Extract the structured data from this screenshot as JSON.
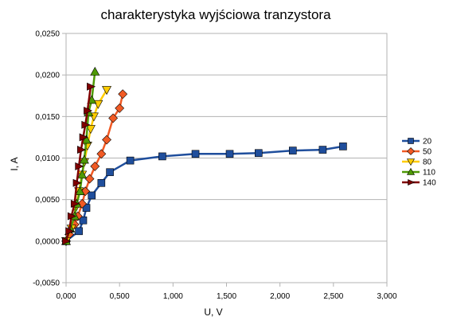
{
  "chart_data": {
    "type": "scatter",
    "title": "charakterystyka wyjściowa tranzystora",
    "xlabel": "U, V",
    "ylabel": "I, A",
    "xlim": [
      0,
      3
    ],
    "ylim": [
      -0.005,
      0.025
    ],
    "x_ticks": [
      "0,000",
      "0,500",
      "1,000",
      "1,500",
      "2,000",
      "2,500",
      "3,000"
    ],
    "y_ticks": [
      "-0,0050",
      "0,0000",
      "0,0050",
      "0,0100",
      "0,0150",
      "0,0200",
      "0,0250"
    ],
    "grid": "horizontal",
    "legend_position": "right",
    "series": [
      {
        "name": "20",
        "color": "#1f4e9c",
        "marker": "square",
        "x": [
          0.0,
          0.12,
          0.16,
          0.19,
          0.24,
          0.33,
          0.41,
          0.6,
          0.9,
          1.21,
          1.53,
          1.8,
          2.12,
          2.4,
          2.59
        ],
        "y": [
          0.0,
          0.0012,
          0.0025,
          0.004,
          0.0055,
          0.007,
          0.0083,
          0.0097,
          0.0102,
          0.0105,
          0.0105,
          0.0106,
          0.0109,
          0.011,
          0.0114
        ]
      },
      {
        "name": "50",
        "color": "#f15a24",
        "marker": "diamond",
        "x": [
          0.0,
          0.03,
          0.08,
          0.11,
          0.15,
          0.18,
          0.22,
          0.27,
          0.33,
          0.38,
          0.44,
          0.5,
          0.53
        ],
        "y": [
          0.0,
          0.0008,
          0.002,
          0.003,
          0.0045,
          0.006,
          0.0075,
          0.009,
          0.0105,
          0.0122,
          0.0148,
          0.016,
          0.0177
        ]
      },
      {
        "name": "80",
        "color": "#ffcc00",
        "marker": "triangle-down",
        "x": [
          0.0,
          0.05,
          0.09,
          0.12,
          0.15,
          0.17,
          0.2,
          0.23,
          0.26,
          0.3,
          0.38
        ],
        "y": [
          0.0,
          0.0015,
          0.004,
          0.006,
          0.008,
          0.0095,
          0.0115,
          0.0135,
          0.015,
          0.0165,
          0.0182
        ]
      },
      {
        "name": "110",
        "color": "#4e9a06",
        "marker": "triangle-up",
        "x": [
          0.0,
          0.04,
          0.08,
          0.1,
          0.13,
          0.15,
          0.17,
          0.19,
          0.21,
          0.24,
          0.27
        ],
        "y": [
          0.0,
          0.0015,
          0.003,
          0.0045,
          0.006,
          0.008,
          0.0098,
          0.0122,
          0.0155,
          0.017,
          0.0204
        ]
      },
      {
        "name": "140",
        "color": "#800000",
        "marker": "arrow-right",
        "x": [
          0.0,
          0.03,
          0.05,
          0.08,
          0.1,
          0.12,
          0.14,
          0.16,
          0.18,
          0.2,
          0.23
        ],
        "y": [
          0.0,
          0.0012,
          0.003,
          0.0045,
          0.007,
          0.009,
          0.011,
          0.0125,
          0.014,
          0.0157,
          0.0186
        ]
      }
    ]
  }
}
